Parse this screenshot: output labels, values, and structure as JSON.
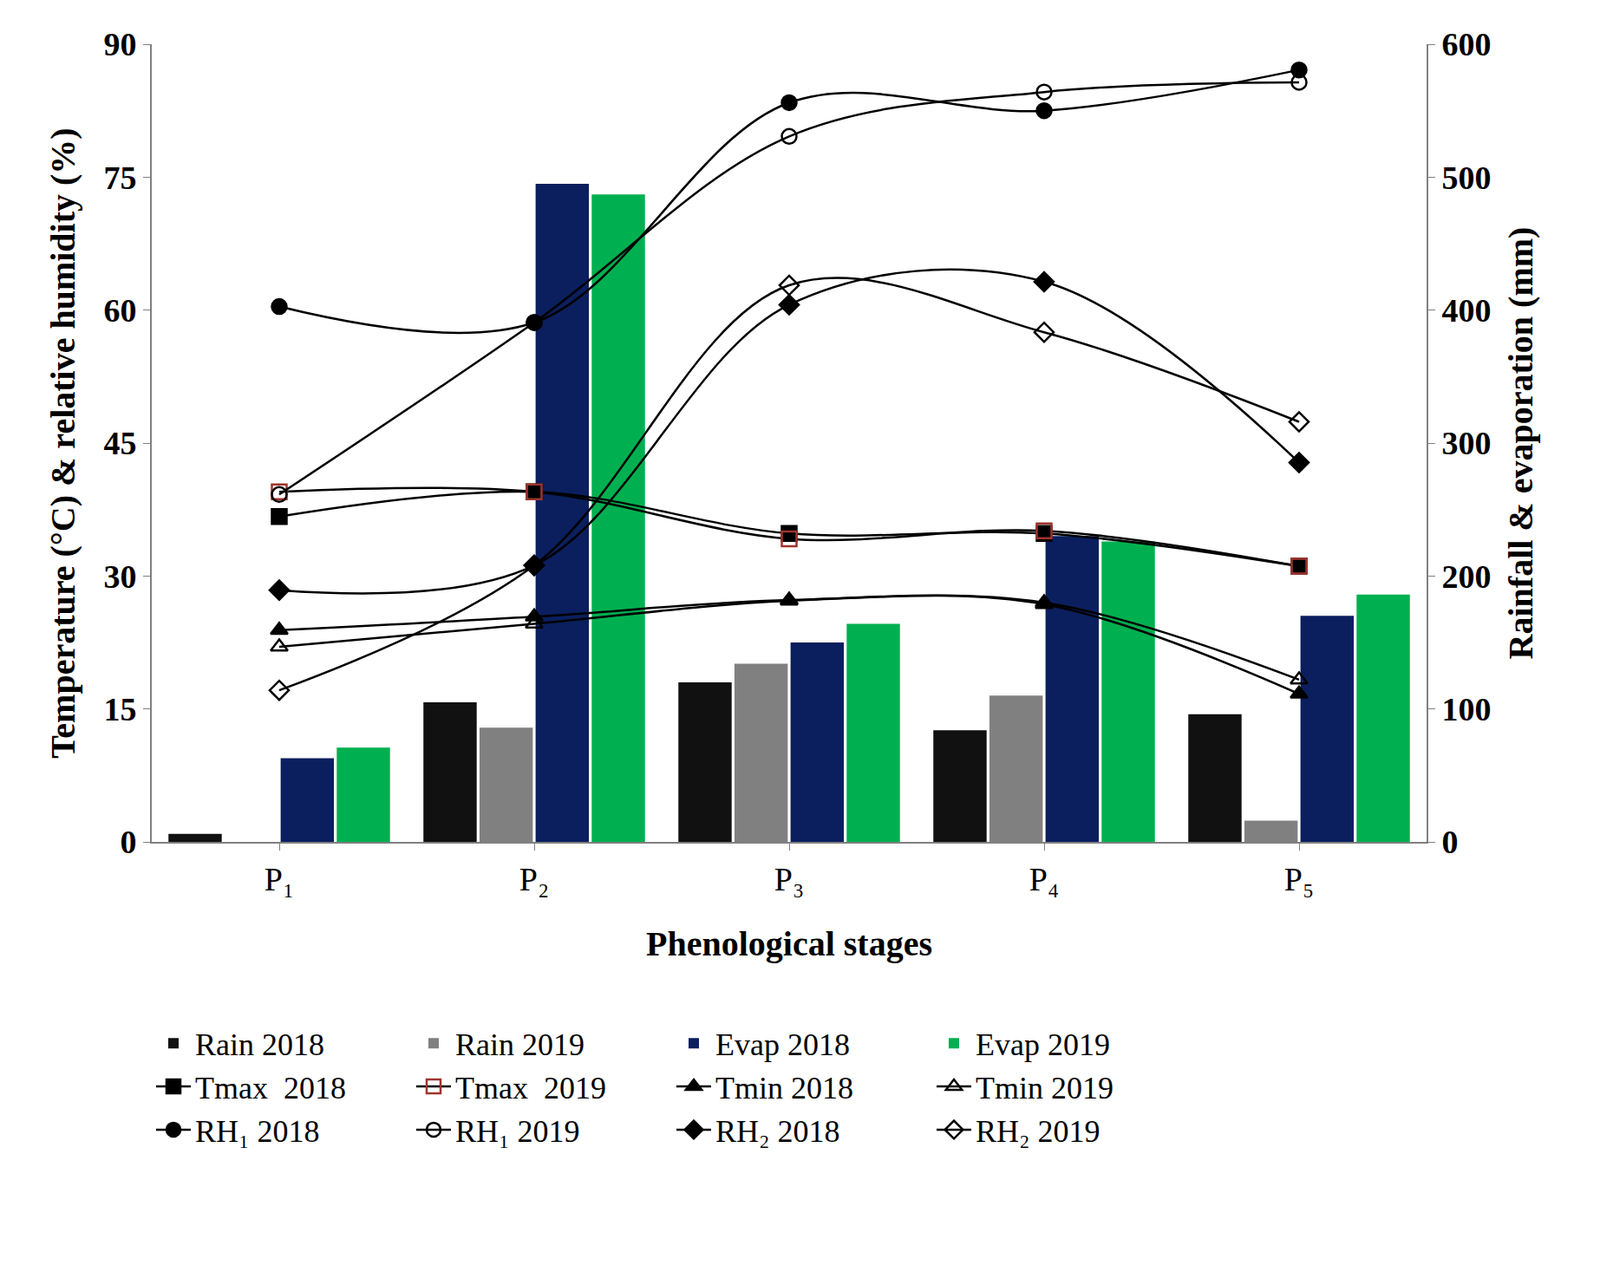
{
  "chart_data": {
    "type": "bar",
    "xlabel": "Phenological stages",
    "ylabel": "Temperature (°C) & relative humidity (%)",
    "y2label": "Rainfall & evaporation (mm)",
    "categories": [
      "P₁",
      "P₂",
      "P₃",
      "P₄",
      "P₅"
    ],
    "ylim": [
      0,
      90
    ],
    "yticks": [
      0,
      15,
      30,
      45,
      60,
      75,
      90
    ],
    "y2lim": [
      0,
      600
    ],
    "y2ticks": [
      0,
      100,
      200,
      300,
      400,
      500,
      600
    ],
    "grid": false,
    "legend": "bottom",
    "series": [
      {
        "name": "Rain 2018",
        "type": "bar",
        "axis": "y2",
        "color": "#111111",
        "values": [
          6,
          105,
          120,
          84,
          96
        ]
      },
      {
        "name": "Rain 2019",
        "type": "bar",
        "axis": "y2",
        "color": "#808080",
        "values": [
          0,
          86,
          134,
          110,
          16
        ]
      },
      {
        "name": "Evap 2018",
        "type": "bar",
        "axis": "y2",
        "color": "#0b1f5e",
        "values": [
          63,
          495,
          150,
          230,
          170
        ]
      },
      {
        "name": "Evap 2019",
        "type": "bar",
        "axis": "y2",
        "color": "#00b050",
        "values": [
          71,
          487,
          164,
          226,
          186
        ]
      },
      {
        "name": "Tmax  2018",
        "type": "line",
        "color": "#000000",
        "marker": "square",
        "line_style": "spline",
        "values": [
          36.7,
          39.5,
          34.8,
          34.8,
          31.1
        ]
      },
      {
        "name": "Tmax  2019",
        "type": "line",
        "color": "#a0342c",
        "marker": "square-open",
        "line_style": "spline",
        "values": [
          39.5,
          39.5,
          34.2,
          35.1,
          31.1
        ]
      },
      {
        "name": "Tmin 2018",
        "type": "line",
        "color": "#000000",
        "marker": "triangle-up",
        "line_style": "spline",
        "values": [
          23.9,
          25.4,
          27.3,
          26.8,
          16.7
        ]
      },
      {
        "name": "Tmin 2019",
        "type": "line",
        "color": "#000000",
        "marker": "triangle-up-open",
        "line_style": "spline",
        "values": [
          22.0,
          24.6,
          27.2,
          27.0,
          18.3
        ]
      },
      {
        "name": "RH₁ 2018",
        "type": "line",
        "color": "#000000",
        "marker": "circle",
        "line_style": "spline",
        "values": [
          60.4,
          58.6,
          83.4,
          82.5,
          87.1
        ]
      },
      {
        "name": "RH₁ 2019",
        "type": "line",
        "color": "#000000",
        "marker": "circle-open",
        "line_style": "spline",
        "values": [
          39.2,
          58.6,
          79.6,
          84.6,
          85.7
        ]
      },
      {
        "name": "RH₂ 2018",
        "type": "line",
        "color": "#000000",
        "marker": "diamond",
        "line_style": "spline",
        "values": [
          28.4,
          31.2,
          60.6,
          63.2,
          42.8
        ]
      },
      {
        "name": "RH₂ 2019",
        "type": "line",
        "color": "#000000",
        "marker": "diamond-open",
        "line_style": "spline",
        "values": [
          17.1,
          31.2,
          62.8,
          57.5,
          47.4
        ]
      }
    ]
  }
}
